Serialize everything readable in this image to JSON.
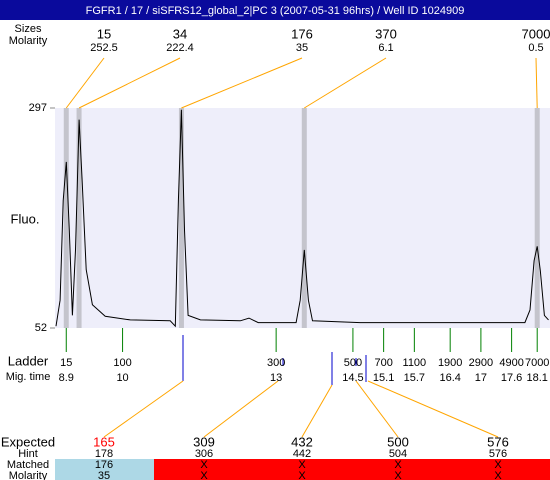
{
  "header": {
    "title": "FGFR1 / 17 / siSFRS12_global_2|PC 3 (2007-05-31 96hrs) / Well ID 1024909"
  },
  "peaks": {
    "size_label": "Sizes",
    "molarity_label": "Molarity",
    "items": [
      {
        "size": 15,
        "molarity": 252.5,
        "mig_time": 8.9
      },
      {
        "size": 34,
        "molarity": 222.4,
        "mig_time": 9.15
      },
      {
        "size": 176,
        "molarity": 35,
        "mig_time": 11.15
      },
      {
        "size": 370,
        "molarity": 6.1,
        "mig_time": 13.55
      },
      {
        "size": 7000,
        "molarity": 0.5,
        "mig_time": 18.1
      }
    ]
  },
  "chart_data": {
    "type": "line",
    "ylabel": "Fluo.",
    "ylim": [
      52,
      297
    ],
    "yticks": [
      52,
      297
    ],
    "xlim": [
      8.68,
      18.35
    ],
    "color": "#000000",
    "band_color": "#c4c4cc",
    "plot_background": "#eeeefa",
    "x": [
      8.7,
      8.78,
      8.84,
      8.9,
      8.96,
      9.02,
      9.08,
      9.15,
      9.21,
      9.29,
      9.41,
      9.66,
      10.15,
      10.93,
      11.03,
      11.09,
      11.15,
      11.21,
      11.28,
      11.52,
      12.3,
      12.47,
      12.65,
      13.39,
      13.47,
      13.55,
      13.63,
      13.71,
      14.64,
      16.4,
      17.86,
      17.96,
      18.04,
      18.1,
      18.16,
      18.24,
      18.32
    ],
    "values": [
      54,
      83,
      194,
      237,
      161,
      66,
      139,
      284,
      217,
      117,
      78,
      65,
      61,
      60,
      54,
      194,
      295,
      161,
      66,
      61,
      60,
      63,
      58,
      58,
      83,
      139,
      83,
      60,
      58,
      58,
      58,
      72,
      127,
      143,
      116,
      66,
      61
    ]
  },
  "ladder": {
    "label": "Ladder",
    "mig_label": "Mig. time",
    "items": [
      {
        "size": 15,
        "mig_time": 8.9
      },
      {
        "size": 100,
        "mig_time": 10
      },
      {
        "size": 300,
        "mig_time": 13
      },
      {
        "size": 500,
        "mig_time": 14.5
      },
      {
        "size": 700,
        "mig_time": 15.1
      },
      {
        "size": 1100,
        "mig_time": 15.7
      },
      {
        "size": 1900,
        "mig_time": 16.4
      },
      {
        "size": 2900,
        "mig_time": 17
      },
      {
        "size": 4900,
        "mig_time": 17.6
      },
      {
        "size": 7000,
        "mig_time": 18.1
      }
    ]
  },
  "expected": {
    "row_labels": [
      "Expected",
      "Hint",
      "Matched",
      "Molarity"
    ],
    "columns": [
      {
        "expected": 165,
        "hint": 178,
        "matched": 176,
        "molarity": 35
      },
      {
        "expected": 309,
        "hint": 306,
        "matched": "X",
        "molarity": "X"
      },
      {
        "expected": 432,
        "hint": 442,
        "matched": "X",
        "molarity": "X"
      },
      {
        "expected": 500,
        "hint": 504,
        "matched": "X",
        "molarity": "X"
      },
      {
        "expected": 576,
        "hint": 576,
        "matched": "X",
        "molarity": "X"
      }
    ]
  }
}
